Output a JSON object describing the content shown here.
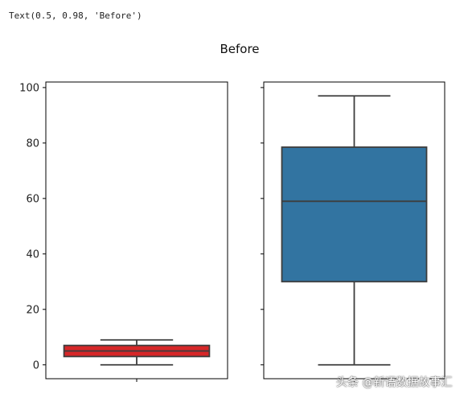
{
  "output_text": "Text(0.5, 0.98, 'Before')",
  "watermark": "头条 @新语数据故事汇",
  "chart_data": {
    "type": "box",
    "title": "Before",
    "ylim": [
      -5,
      102
    ],
    "yticks": [
      0,
      20,
      40,
      60,
      80,
      100
    ],
    "grid": false,
    "sharey": true,
    "panels": [
      {
        "name": "",
        "color": "#d62728",
        "box": {
          "whisker_low": 0,
          "q1": 3,
          "median": 5,
          "q3": 7,
          "whisker_high": 9
        }
      },
      {
        "name": "",
        "color": "#3274a1",
        "box": {
          "whisker_low": 0,
          "q1": 30,
          "median": 59,
          "q3": 78.5,
          "whisker_high": 97
        }
      }
    ]
  }
}
